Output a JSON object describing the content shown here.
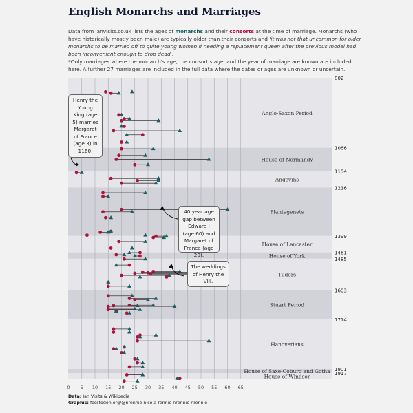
{
  "title": "English Monarchs and Marriages",
  "description": {
    "part1": "Data from ianvisits.co.uk lists the ages of ",
    "monarchs": "monarchs",
    "part2": " and their ",
    "consorts": "consorts",
    "part3": " at the time of marriage. Monarchs (who have historically mostly been male) are typically older than their consorts and ",
    "quote": "'it was not that uncommon for older monarchs to be married off to quite young women if needing a replacement queen after the previous model had been inconvenient enough to drop dead'",
    "end": "."
  },
  "note": "*Only marriages where the monarch's age, the consort's age, and the year of marriage are known are included here. A further 27 marriages are included in the full data where the dates or ages are unknown or uncertain.",
  "footer": {
    "data_label": "Data:",
    "data_text": "Ian Visits & Wikipedia",
    "graphic_label": "Graphic:",
    "graphic_text": "fosstodon.org/@nrennie  nicola-rennie  nrennie  nrennie"
  },
  "annotations": {
    "henry_young_king": "Henry the Young King (age 5) marries Margaret of France (age 3) in 1160.",
    "age_gap": "40 year age gap between Edward I (age 60) and Margaret of France (age 20).",
    "henry_viii": "The weddings of Henry the VIII."
  },
  "colors": {
    "monarch": "#1d5e63",
    "consort": "#b0103a",
    "band_light": "#e6e6ea",
    "band_dark": "#d2d2d9"
  },
  "chart_data": {
    "type": "scatter",
    "xlabel": "",
    "ylabel": "",
    "xlim": [
      0,
      65
    ],
    "x_ticks": [
      0,
      5,
      10,
      15,
      20,
      25,
      30,
      35,
      40,
      45,
      50,
      55,
      60,
      65
    ],
    "ylim": [
      802,
      1940
    ],
    "y_reversed": true,
    "grid": true,
    "periods": [
      {
        "name": "Anglo-Saxon Period",
        "start": 802,
        "start_label": "802",
        "end": 1066,
        "shade": "light"
      },
      {
        "name": "House of Normandy",
        "start": 1066,
        "start_label": "1066",
        "end": 1154,
        "shade": "dark"
      },
      {
        "name": "Angevins",
        "start": 1154,
        "start_label": "1154",
        "end": 1216,
        "shade": "light"
      },
      {
        "name": "Plantagenets",
        "start": 1216,
        "start_label": "1216",
        "end": 1399,
        "shade": "dark"
      },
      {
        "name": "House of Lancaster",
        "start": 1399,
        "start_label": "1399",
        "end": 1461,
        "shade": "light"
      },
      {
        "name": "House of York",
        "start": 1461,
        "start_label": "1461",
        "end": 1485,
        "shade": "dark"
      },
      {
        "name": "Tudors",
        "start": 1485,
        "start_label": "1485",
        "end": 1603,
        "shade": "light"
      },
      {
        "name": "Stuart Period",
        "start": 1603,
        "start_label": "1603",
        "end": 1714,
        "shade": "dark"
      },
      {
        "name": "Hanoverians",
        "start": 1714,
        "start_label": "1714",
        "end": 1901,
        "shade": "light"
      },
      {
        "name": "House of Saxe-Coburg and Gotha",
        "start": 1901,
        "start_label": "1901",
        "end": 1917,
        "shade": "dark"
      },
      {
        "name": "House of Windsor",
        "start": 1917,
        "start_label": "1917",
        "end": 1940,
        "shade": "light"
      }
    ],
    "marriages": [
      {
        "year": 855,
        "monarch": 24,
        "consort": 14
      },
      {
        "year": 860,
        "monarch": 19,
        "consort": 16
      },
      {
        "year": 942,
        "monarch": 20,
        "consort": 19
      },
      {
        "year": 957,
        "monarch": 23,
        "consort": 21
      },
      {
        "year": 964,
        "monarch": 34,
        "consort": 20
      },
      {
        "year": 985,
        "monarch": 20,
        "consort": 21
      },
      {
        "year": 1002,
        "monarch": 42,
        "consort": 17
      },
      {
        "year": 1017,
        "monarch": 22,
        "consort": 28
      },
      {
        "year": 1045,
        "monarch": 22,
        "consort": 20
      },
      {
        "year": 1070,
        "monarch": 32,
        "consort": 20
      },
      {
        "year": 1095,
        "monarch": 29,
        "consort": 19
      },
      {
        "year": 1110,
        "monarch": 53,
        "consort": 18
      },
      {
        "year": 1130,
        "monarch": 30,
        "consort": 25
      },
      {
        "year": 1160,
        "monarch": 5,
        "consort": 3
      },
      {
        "year": 1182,
        "monarch": 34,
        "consort": 16
      },
      {
        "year": 1190,
        "monarch": 34,
        "consort": 26
      },
      {
        "year": 1200,
        "monarch": 33,
        "consort": 20
      },
      {
        "year": 1236,
        "monarch": 29,
        "consort": 13
      },
      {
        "year": 1250,
        "monarch": 15,
        "consort": 13
      },
      {
        "year": 1299,
        "monarch": 60,
        "consort": 20
      },
      {
        "year": 1308,
        "monarch": 24,
        "consort": 13
      },
      {
        "year": 1330,
        "monarch": 16,
        "consort": 14
      },
      {
        "year": 1382,
        "monarch": 16,
        "consort": 16
      },
      {
        "year": 1385,
        "monarch": 15,
        "consort": 12
      },
      {
        "year": 1396,
        "monarch": 29,
        "consort": 7
      },
      {
        "year": 1400,
        "monarch": 37,
        "consort": 33
      },
      {
        "year": 1405,
        "monarch": 36,
        "consort": 32
      },
      {
        "year": 1420,
        "monarch": 29,
        "consort": 19
      },
      {
        "year": 1445,
        "monarch": 24,
        "consort": 16
      },
      {
        "year": 1462,
        "monarch": 23,
        "consort": 27
      },
      {
        "year": 1470,
        "monarch": 21,
        "consort": 18
      },
      {
        "year": 1475,
        "monarch": 25,
        "consort": 27
      },
      {
        "year": 1486,
        "monarch": 29,
        "consort": 21
      },
      {
        "year": 1509,
        "monarch": 18,
        "consort": 23
      },
      {
        "year": 1533,
        "monarch": 42,
        "consort": 32
      },
      {
        "year": 1536,
        "monarch": 45,
        "consort": 28
      },
      {
        "year": 1538,
        "monarch": 48,
        "consort": 30
      },
      {
        "year": 1540,
        "monarch": 49,
        "consort": 25
      },
      {
        "year": 1543,
        "monarch": 51,
        "consort": 31
      },
      {
        "year": 1548,
        "monarch": 38,
        "consort": 20
      },
      {
        "year": 1554,
        "monarch": 27,
        "consort": 37
      },
      {
        "year": 1574,
        "monarch": 15,
        "consort": 15
      },
      {
        "year": 1589,
        "monarch": 23,
        "consort": 15
      },
      {
        "year": 1625,
        "monarch": 24,
        "consort": 15
      },
      {
        "year": 1635,
        "monarch": 33,
        "consort": 23
      },
      {
        "year": 1640,
        "monarch": 30,
        "consort": 25
      },
      {
        "year": 1660,
        "monarch": 32,
        "consort": 23
      },
      {
        "year": 1662,
        "monarch": 26,
        "consort": 17
      },
      {
        "year": 1665,
        "monarch": 40,
        "consort": 15
      },
      {
        "year": 1675,
        "monarch": 25,
        "consort": 15
      },
      {
        "year": 1677,
        "monarch": 27,
        "consort": 15
      },
      {
        "year": 1683,
        "monarch": 18,
        "consort": 18
      },
      {
        "year": 1690,
        "monarch": 23,
        "consort": 22
      },
      {
        "year": 1750,
        "monarch": 23,
        "consort": 17
      },
      {
        "year": 1762,
        "monarch": 23,
        "consort": 17
      },
      {
        "year": 1773,
        "monarch": 33,
        "consort": 27
      },
      {
        "year": 1780,
        "monarch": 27,
        "consort": 26
      },
      {
        "year": 1795,
        "monarch": 53,
        "consort": 26
      },
      {
        "year": 1818,
        "monarch": 21,
        "consort": 21
      },
      {
        "year": 1825,
        "monarch": 18,
        "consort": 17
      },
      {
        "year": 1840,
        "monarch": 21,
        "consort": 20
      },
      {
        "year": 1863,
        "monarch": 26,
        "consort": 25
      },
      {
        "year": 1878,
        "monarch": 28,
        "consort": 26
      },
      {
        "year": 1893,
        "monarch": 28,
        "consort": 23
      },
      {
        "year": 1923,
        "monarch": 28,
        "consort": 22
      },
      {
        "year": 1937,
        "monarch": 41,
        "consort": 42
      },
      {
        "year": 1947,
        "monarch": 26,
        "consort": 21
      }
    ]
  }
}
